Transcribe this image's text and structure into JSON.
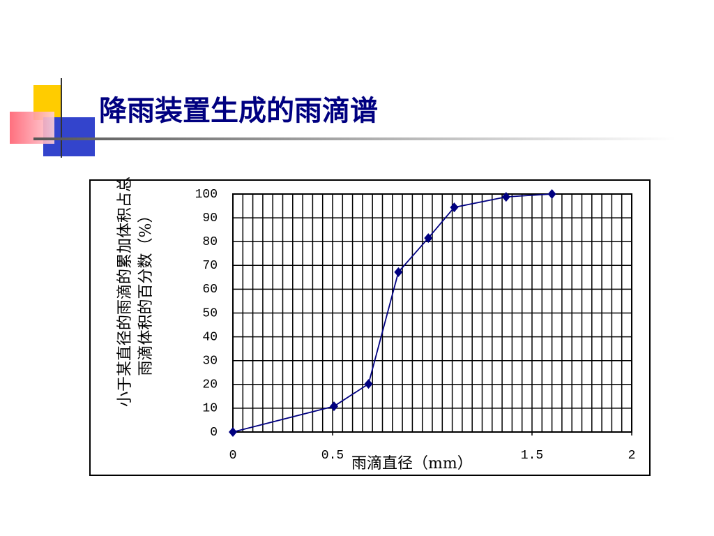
{
  "chart_data": {
    "type": "line",
    "title": "降雨装置生成的雨滴谱",
    "xlabel": "雨滴直径（mm）",
    "ylabel": "小于某直径的雨滴的累加体积占总雨滴体积的百分数（%）",
    "x": [
      0,
      0.507,
      0.68,
      0.83,
      0.98,
      1.11,
      1.37,
      1.6
    ],
    "series": [
      {
        "color": "#000080",
        "values": [
          0,
          10.8,
          20.2,
          67.2,
          81.5,
          94.4,
          98.8,
          100
        ]
      }
    ],
    "xlim": [
      0,
      2
    ],
    "xticks": [
      0,
      0.5,
      1.5,
      2
    ],
    "ylim": [
      0,
      100
    ],
    "yticks": [
      0,
      10,
      20,
      30,
      40,
      50,
      60,
      70,
      80,
      90,
      100
    ],
    "grid": true
  }
}
